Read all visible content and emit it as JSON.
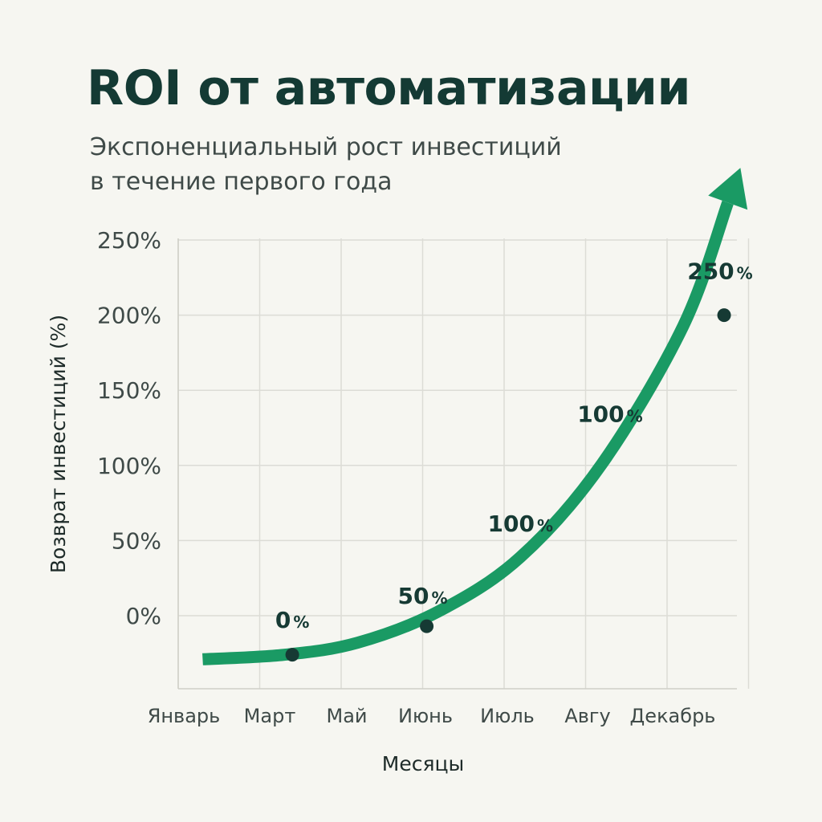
{
  "chart_data": {
    "type": "line",
    "title": "ROI от автоматизации",
    "subtitle_lines": [
      "Экспоненциальный рост инвестиций",
      "в течение первого года"
    ],
    "xlabel": "Месяцы",
    "ylabel": "Возврат инвестиций (%)",
    "categories": [
      "Январь",
      "Март",
      "Май",
      "Июнь",
      "Июль",
      "Авгу",
      "Декабрь"
    ],
    "y_ticks": [
      "0%",
      "50%",
      "100%",
      "150%",
      "200%",
      "250%"
    ],
    "ylim": [
      -50,
      250
    ],
    "grid": true,
    "series": [
      {
        "color": "#1a9a64",
        "arrow_end": true,
        "x": [
          -0.4,
          0.6,
          1.5,
          2.5,
          3.5,
          4.5,
          5.5,
          6.2
        ],
        "values": [
          -29,
          -26,
          -18,
          3,
          39,
          101,
          193,
          298
        ]
      }
    ],
    "markers": [
      {
        "x": 0.7,
        "y": -26
      },
      {
        "x": 2.35,
        "y": -7
      },
      {
        "x": 6.0,
        "y": 200
      }
    ],
    "annotations": [
      {
        "value": "0",
        "unit": "%",
        "x": 0.7,
        "y": -8
      },
      {
        "value": "50",
        "unit": "%",
        "x": 2.3,
        "y": 8
      },
      {
        "value": "100",
        "unit": "%",
        "x": 3.5,
        "y": 56
      },
      {
        "value": "100",
        "unit": "%",
        "x": 4.6,
        "y": 129
      },
      {
        "value": "250",
        "unit": "%",
        "x": 5.95,
        "y": 224
      }
    ]
  }
}
